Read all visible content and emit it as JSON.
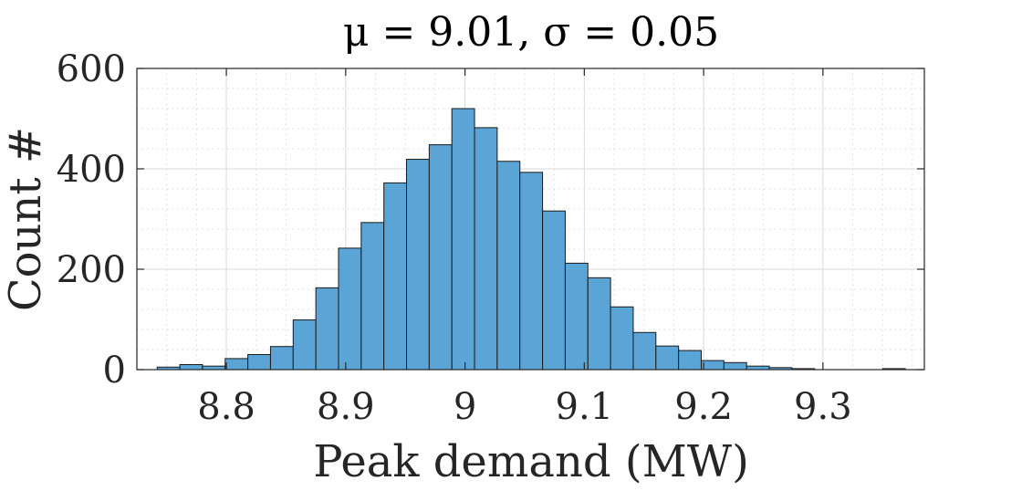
{
  "chart_data": {
    "type": "bar",
    "title": "μ = 9.01, σ = 0.05",
    "xlabel": "Peak demand (MW)",
    "ylabel": "Count #",
    "xlim": [
      8.725,
      9.385
    ],
    "ylim": [
      0,
      600
    ],
    "bin_width": 0.019,
    "bin_starts": [
      8.742,
      8.761,
      8.78,
      8.799,
      8.818,
      8.837,
      8.856,
      8.875,
      8.894,
      8.913,
      8.932,
      8.951,
      8.97,
      8.989,
      9.008,
      9.027,
      9.046,
      9.065,
      9.084,
      9.103,
      9.122,
      9.141,
      9.16,
      9.179,
      9.198,
      9.217,
      9.236,
      9.255,
      9.274,
      9.293,
      9.312,
      9.331,
      9.35
    ],
    "values": [
      5,
      10,
      7,
      22,
      30,
      46,
      99,
      163,
      242,
      293,
      372,
      419,
      448,
      520,
      482,
      415,
      393,
      316,
      212,
      183,
      125,
      74,
      47,
      38,
      18,
      14,
      7,
      4,
      2,
      0,
      0,
      0,
      2
    ],
    "xticks": [
      8.8,
      8.9,
      9.0,
      9.1,
      9.2,
      9.3
    ],
    "xtick_labels": [
      "8.8",
      "8.9",
      "9",
      "9.1",
      "9.2",
      "9.3"
    ],
    "yticks": [
      0,
      200,
      400,
      600
    ],
    "ytick_labels": [
      "0",
      "200",
      "400",
      "600"
    ],
    "grid": true,
    "minor_grid": true,
    "colors": {
      "bar_fill": "#5ba4d6",
      "bar_edge": "#1a1a1a",
      "grid": "#d9d9d9",
      "axis": "#262626"
    }
  }
}
